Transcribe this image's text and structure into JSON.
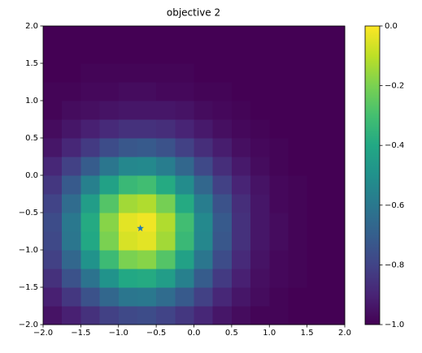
{
  "chart_data": {
    "type": "heatmap",
    "title": "objective 2",
    "colormap": "viridis",
    "x": [
      -1.875,
      -1.625,
      -1.375,
      -1.125,
      -0.875,
      -0.625,
      -0.375,
      -0.125,
      0.125,
      0.375,
      0.625,
      0.875,
      1.125,
      1.375,
      1.625,
      1.875
    ],
    "y": [
      -1.875,
      -1.625,
      -1.375,
      -1.125,
      -0.875,
      -0.625,
      -0.375,
      -0.125,
      0.125,
      0.375,
      0.625,
      0.875,
      1.125,
      1.375,
      1.625,
      1.875
    ],
    "z": [
      [
        -0.95,
        -0.91,
        -0.86,
        -0.81,
        -0.78,
        -0.77,
        -0.8,
        -0.84,
        -0.89,
        -0.94,
        -0.97,
        -0.99,
        -0.99,
        -1.0,
        -1.0,
        -1.0
      ],
      [
        -0.91,
        -0.84,
        -0.75,
        -0.67,
        -0.61,
        -0.6,
        -0.65,
        -0.72,
        -0.81,
        -0.89,
        -0.94,
        -0.97,
        -0.99,
        -1.0,
        -1.0,
        -1.0
      ],
      [
        -0.86,
        -0.75,
        -0.62,
        -0.49,
        -0.4,
        -0.39,
        -0.45,
        -0.57,
        -0.71,
        -0.83,
        -0.91,
        -0.96,
        -0.98,
        -0.99,
        -1.0,
        -1.0
      ],
      [
        -0.81,
        -0.67,
        -0.49,
        -0.32,
        -0.2,
        -0.18,
        -0.27,
        -0.43,
        -0.61,
        -0.77,
        -0.88,
        -0.95,
        -0.98,
        -0.99,
        -1.0,
        -1.0
      ],
      [
        -0.78,
        -0.61,
        -0.4,
        -0.2,
        -0.06,
        -0.04,
        -0.14,
        -0.33,
        -0.54,
        -0.73,
        -0.86,
        -0.94,
        -0.97,
        -0.99,
        -1.0,
        -1.0
      ],
      [
        -0.77,
        -0.6,
        -0.39,
        -0.18,
        -0.04,
        -0.02,
        -0.12,
        -0.31,
        -0.53,
        -0.72,
        -0.86,
        -0.94,
        -0.97,
        -0.99,
        -1.0,
        -1.0
      ],
      [
        -0.8,
        -0.65,
        -0.45,
        -0.27,
        -0.14,
        -0.12,
        -0.21,
        -0.39,
        -0.58,
        -0.75,
        -0.87,
        -0.94,
        -0.98,
        -0.99,
        -1.0,
        -1.0
      ],
      [
        -0.84,
        -0.72,
        -0.57,
        -0.43,
        -0.33,
        -0.31,
        -0.39,
        -0.52,
        -0.67,
        -0.81,
        -0.9,
        -0.95,
        -0.98,
        -0.99,
        -1.0,
        -1.0
      ],
      [
        -0.89,
        -0.81,
        -0.71,
        -0.61,
        -0.54,
        -0.53,
        -0.58,
        -0.67,
        -0.78,
        -0.87,
        -0.93,
        -0.97,
        -0.99,
        -1.0,
        -1.0,
        -1.0
      ],
      [
        -0.94,
        -0.89,
        -0.83,
        -0.77,
        -0.73,
        -0.72,
        -0.75,
        -0.81,
        -0.87,
        -0.92,
        -0.96,
        -0.98,
        -0.99,
        -1.0,
        -1.0,
        -1.0
      ],
      [
        -0.97,
        -0.94,
        -0.91,
        -0.88,
        -0.86,
        -0.86,
        -0.87,
        -0.9,
        -0.93,
        -0.96,
        -0.98,
        -0.99,
        -1.0,
        -1.0,
        -1.0,
        -1.0
      ],
      [
        -0.99,
        -0.97,
        -0.96,
        -0.95,
        -0.94,
        -0.94,
        -0.94,
        -0.95,
        -0.97,
        -0.98,
        -0.99,
        -1.0,
        -1.0,
        -1.0,
        -1.0,
        -1.0
      ],
      [
        -0.99,
        -0.99,
        -0.98,
        -0.98,
        -0.97,
        -0.97,
        -0.98,
        -0.98,
        -0.99,
        -0.99,
        -1.0,
        -1.0,
        -1.0,
        -1.0,
        -1.0,
        -1.0
      ],
      [
        -1.0,
        -1.0,
        -0.99,
        -0.99,
        -0.99,
        -0.99,
        -0.99,
        -0.99,
        -1.0,
        -1.0,
        -1.0,
        -1.0,
        -1.0,
        -1.0,
        -1.0,
        -1.0
      ],
      [
        -1.0,
        -1.0,
        -1.0,
        -1.0,
        -1.0,
        -1.0,
        -1.0,
        -1.0,
        -1.0,
        -1.0,
        -1.0,
        -1.0,
        -1.0,
        -1.0,
        -1.0,
        -1.0
      ],
      [
        -1.0,
        -1.0,
        -1.0,
        -1.0,
        -1.0,
        -1.0,
        -1.0,
        -1.0,
        -1.0,
        -1.0,
        -1.0,
        -1.0,
        -1.0,
        -1.0,
        -1.0,
        -1.0
      ]
    ],
    "xlim": [
      -2,
      2
    ],
    "ylim": [
      -2,
      2
    ],
    "zlim": [
      -1,
      0
    ],
    "xticks": [
      {
        "value": -2,
        "label": "−2.0"
      },
      {
        "value": -1.5,
        "label": "−1.5"
      },
      {
        "value": -1,
        "label": "−1.0"
      },
      {
        "value": -0.5,
        "label": "−0.5"
      },
      {
        "value": 0,
        "label": "0.0"
      },
      {
        "value": 0.5,
        "label": "0.5"
      },
      {
        "value": 1,
        "label": "1.0"
      },
      {
        "value": 1.5,
        "label": "1.5"
      },
      {
        "value": 2,
        "label": "2.0"
      }
    ],
    "yticks": [
      {
        "value": -2,
        "label": "−2.0"
      },
      {
        "value": -1.5,
        "label": "−1.5"
      },
      {
        "value": -1,
        "label": "−1.0"
      },
      {
        "value": -0.5,
        "label": "−0.5"
      },
      {
        "value": 0,
        "label": "0.0"
      },
      {
        "value": 0.5,
        "label": "0.5"
      },
      {
        "value": 1,
        "label": "1.0"
      },
      {
        "value": 1.5,
        "label": "1.5"
      },
      {
        "value": 2,
        "label": "2.0"
      }
    ],
    "zticks": [
      {
        "value": -1,
        "label": "−1.0"
      },
      {
        "value": -0.8,
        "label": "−0.8"
      },
      {
        "value": -0.6,
        "label": "−0.6"
      },
      {
        "value": -0.4,
        "label": "−0.4"
      },
      {
        "value": -0.2,
        "label": "−0.2"
      },
      {
        "value": 0,
        "label": "0.0"
      }
    ],
    "points": {
      "x": [
        -0.71
      ],
      "y": [
        -0.71
      ],
      "color": "#1f77b4"
    }
  }
}
